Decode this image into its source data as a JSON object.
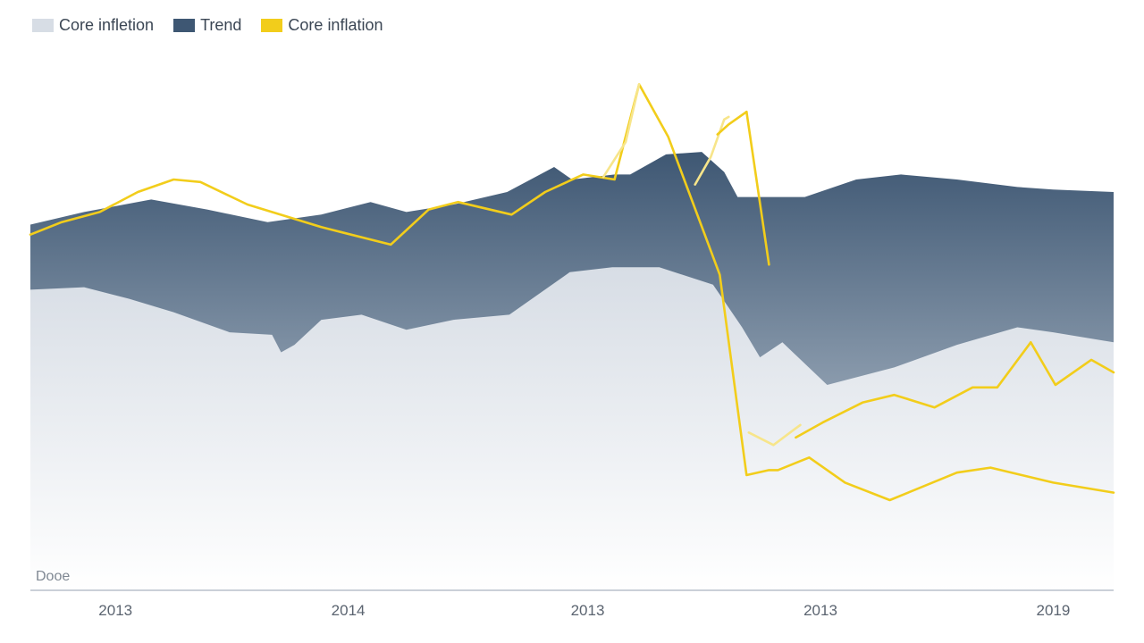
{
  "chart_data": {
    "type": "area",
    "title": "",
    "xlabel": "",
    "ylabel": "",
    "legend": {
      "position": "top-left"
    },
    "corner_label": "Dooe",
    "x_ticks": [
      {
        "x": 0.04,
        "label": "2013"
      },
      {
        "x": 1.08,
        "label": "2014"
      },
      {
        "x": 2.15,
        "label": "2013"
      },
      {
        "x": 3.19,
        "label": "2013"
      },
      {
        "x": 4.23,
        "label": "2019"
      }
    ],
    "xlim": [
      -0.34,
      4.5
    ],
    "ylim": [
      0,
      10
    ],
    "grid": false,
    "series": [
      {
        "name": "Core infletion",
        "kind": "area",
        "color": "#d7dde5",
        "x": [
          -0.34,
          -0.1,
          0.1,
          0.3,
          0.55,
          0.74,
          0.78,
          0.84,
          0.96,
          1.14,
          1.34,
          1.55,
          1.8,
          2.07,
          2.26,
          2.47,
          2.71,
          2.84,
          2.92,
          3.02,
          3.22,
          3.52,
          3.8,
          4.07,
          4.23,
          4.5
        ],
        "y": [
          6.0,
          6.05,
          5.82,
          5.55,
          5.15,
          5.1,
          4.75,
          4.9,
          5.4,
          5.5,
          5.2,
          5.4,
          5.5,
          6.35,
          6.45,
          6.45,
          6.1,
          5.25,
          4.65,
          4.95,
          4.1,
          4.45,
          4.9,
          5.25,
          5.15,
          4.95
        ]
      },
      {
        "name": "Trend",
        "kind": "area",
        "color": "#3e5773",
        "x": [
          -0.34,
          -0.1,
          0.2,
          0.45,
          0.72,
          0.96,
          1.18,
          1.34,
          1.55,
          1.79,
          2.0,
          2.08,
          2.27,
          2.34,
          2.5,
          2.66,
          2.76,
          2.82,
          2.92,
          3.12,
          3.35,
          3.55,
          3.8,
          4.07,
          4.23,
          4.5
        ],
        "y": [
          7.3,
          7.55,
          7.8,
          7.6,
          7.35,
          7.5,
          7.75,
          7.55,
          7.7,
          7.95,
          8.45,
          8.2,
          8.3,
          8.3,
          8.7,
          8.75,
          8.35,
          7.85,
          7.85,
          7.85,
          8.2,
          8.3,
          8.2,
          8.05,
          8.0,
          7.95
        ]
      },
      {
        "name": "Core inflation",
        "kind": "line",
        "color": "#f2cd1b",
        "x": [
          -0.34,
          -0.2,
          -0.03,
          0.14,
          0.3,
          0.42,
          0.63,
          0.96,
          1.27,
          1.44,
          1.57,
          1.81,
          1.96,
          2.13,
          2.27,
          2.38,
          2.51,
          2.74,
          2.86,
          2.96,
          3.0,
          3.14,
          3.3,
          3.5,
          3.8,
          3.95,
          4.23,
          4.5
        ],
        "y": [
          7.1,
          7.35,
          7.55,
          7.95,
          8.2,
          8.15,
          7.7,
          7.25,
          6.9,
          7.6,
          7.75,
          7.5,
          7.95,
          8.3,
          8.2,
          10.1,
          9.05,
          6.3,
          2.3,
          2.4,
          2.4,
          2.65,
          2.15,
          1.8,
          2.35,
          2.45,
          2.15,
          1.95
        ]
      },
      {
        "name": "",
        "kind": "line",
        "color": "#f2cd1b",
        "x": [
          3.08,
          3.2,
          3.38,
          3.52,
          3.7,
          3.87,
          3.98,
          4.13,
          4.24,
          4.4,
          4.5
        ],
        "y": [
          3.05,
          3.35,
          3.75,
          3.9,
          3.65,
          4.05,
          4.05,
          4.95,
          4.1,
          4.6,
          4.35
        ]
      },
      {
        "name": "",
        "kind": "line",
        "color": "#f7e58a",
        "x": [
          2.87,
          2.98,
          3.1
        ],
        "y": [
          3.15,
          2.9,
          3.3
        ]
      },
      {
        "name": "",
        "kind": "line",
        "color": "#f7e58a",
        "x": [
          2.22,
          2.32,
          2.38
        ],
        "y": [
          8.25,
          8.95,
          10.1
        ]
      },
      {
        "name": "",
        "kind": "line",
        "color": "#f7e58a",
        "x": [
          2.63,
          2.7,
          2.76,
          2.78
        ],
        "y": [
          8.1,
          8.65,
          9.4,
          9.45
        ]
      },
      {
        "name": "",
        "kind": "line",
        "color": "#f2cd1b",
        "x": [
          2.73,
          2.78,
          2.86
        ],
        "y": [
          9.1,
          9.3,
          9.55
        ]
      },
      {
        "name": "",
        "kind": "line",
        "color": "#f2cd1b",
        "x": [
          2.86,
          2.96
        ],
        "y": [
          9.55,
          6.5
        ]
      }
    ]
  }
}
